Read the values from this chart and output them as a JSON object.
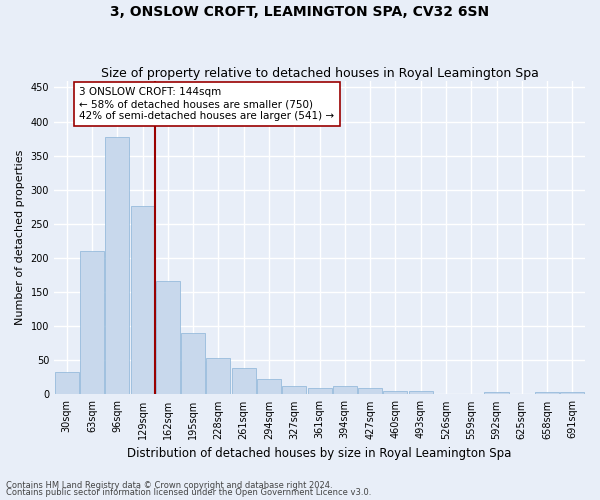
{
  "title": "3, ONSLOW CROFT, LEAMINGTON SPA, CV32 6SN",
  "subtitle": "Size of property relative to detached houses in Royal Leamington Spa",
  "xlabel": "Distribution of detached houses by size in Royal Leamington Spa",
  "ylabel": "Number of detached properties",
  "footnote1": "Contains HM Land Registry data © Crown copyright and database right 2024.",
  "footnote2": "Contains public sector information licensed under the Open Government Licence v3.0.",
  "bar_color": "#c8d8ec",
  "bar_edgecolor": "#8ab4d8",
  "vline_color": "#990000",
  "vline_bar_index": 3,
  "annotation_text": "3 ONSLOW CROFT: 144sqm\n← 58% of detached houses are smaller (750)\n42% of semi-detached houses are larger (541) →",
  "annotation_box_facecolor": "white",
  "annotation_box_edgecolor": "#990000",
  "categories": [
    "30sqm",
    "63sqm",
    "96sqm",
    "129sqm",
    "162sqm",
    "195sqm",
    "228sqm",
    "261sqm",
    "294sqm",
    "327sqm",
    "361sqm",
    "394sqm",
    "427sqm",
    "460sqm",
    "493sqm",
    "526sqm",
    "559sqm",
    "592sqm",
    "625sqm",
    "658sqm",
    "691sqm"
  ],
  "values": [
    33,
    211,
    378,
    276,
    167,
    90,
    53,
    39,
    22,
    12,
    10,
    13,
    10,
    5,
    5,
    0,
    0,
    4,
    0,
    4,
    4
  ],
  "ylim": [
    0,
    460
  ],
  "yticks": [
    0,
    50,
    100,
    150,
    200,
    250,
    300,
    350,
    400,
    450
  ],
  "background_color": "#e8eef8",
  "axes_background": "#e8eef8",
  "grid_color": "white",
  "title_fontsize": 10,
  "subtitle_fontsize": 9,
  "xlabel_fontsize": 8.5,
  "ylabel_fontsize": 8,
  "tick_fontsize": 7,
  "annotation_fontsize": 7.5,
  "footnote_fontsize": 6
}
